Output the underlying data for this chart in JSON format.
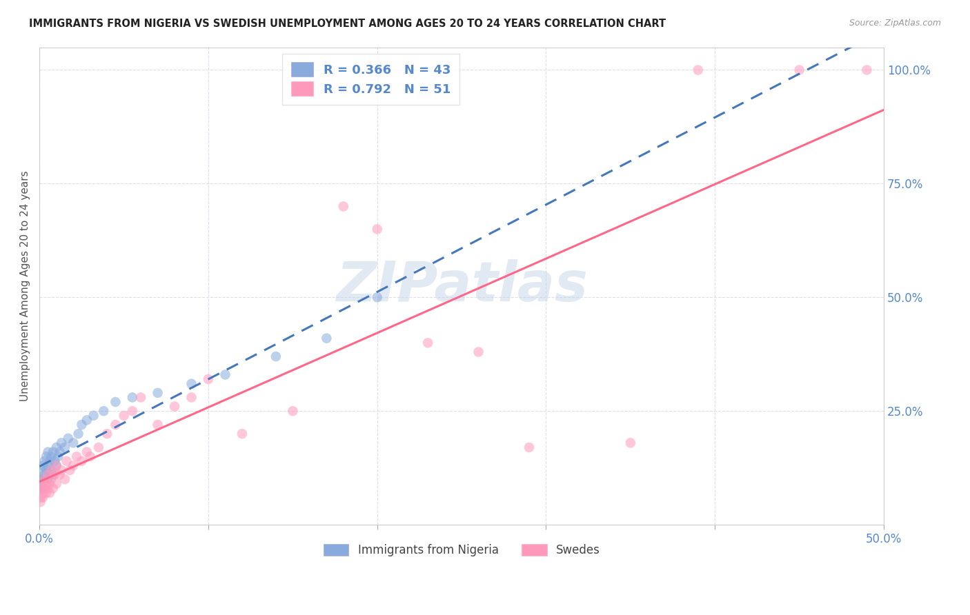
{
  "title": "IMMIGRANTS FROM NIGERIA VS SWEDISH UNEMPLOYMENT AMONG AGES 20 TO 24 YEARS CORRELATION CHART",
  "source": "Source: ZipAtlas.com",
  "ylabel": "Unemployment Among Ages 20 to 24 years",
  "legend_label1": "Immigrants from Nigeria",
  "legend_label2": "Swedes",
  "legend_text1": "R = 0.366   N = 43",
  "legend_text2": "R = 0.792   N = 51",
  "blue_color": "#88AADD",
  "pink_color": "#FF99BB",
  "blue_line_color": "#4477BB",
  "pink_line_color": "#FF6688",
  "title_color": "#222222",
  "axis_label_color": "#5588CC",
  "watermark_color": "#C5D5E8",
  "xlim": [
    0,
    0.5
  ],
  "ylim": [
    0,
    1.05
  ],
  "blue_x": [
    0.0005,
    0.001,
    0.001,
    0.0015,
    0.002,
    0.002,
    0.002,
    0.003,
    0.003,
    0.003,
    0.004,
    0.004,
    0.005,
    0.005,
    0.005,
    0.006,
    0.006,
    0.007,
    0.007,
    0.008,
    0.008,
    0.009,
    0.01,
    0.01,
    0.011,
    0.012,
    0.013,
    0.015,
    0.017,
    0.02,
    0.023,
    0.025,
    0.028,
    0.032,
    0.038,
    0.045,
    0.055,
    0.07,
    0.09,
    0.11,
    0.14,
    0.17,
    0.2
  ],
  "blue_y": [
    0.08,
    0.09,
    0.12,
    0.1,
    0.1,
    0.13,
    0.08,
    0.11,
    0.14,
    0.1,
    0.12,
    0.15,
    0.1,
    0.13,
    0.16,
    0.11,
    0.14,
    0.12,
    0.15,
    0.11,
    0.16,
    0.14,
    0.13,
    0.17,
    0.15,
    0.16,
    0.18,
    0.17,
    0.19,
    0.18,
    0.2,
    0.22,
    0.23,
    0.24,
    0.25,
    0.27,
    0.28,
    0.29,
    0.31,
    0.33,
    0.37,
    0.41,
    0.5
  ],
  "pink_x": [
    0.0005,
    0.001,
    0.001,
    0.002,
    0.002,
    0.002,
    0.003,
    0.003,
    0.004,
    0.004,
    0.005,
    0.005,
    0.006,
    0.006,
    0.007,
    0.007,
    0.008,
    0.009,
    0.01,
    0.01,
    0.012,
    0.013,
    0.015,
    0.016,
    0.018,
    0.02,
    0.022,
    0.025,
    0.028,
    0.03,
    0.035,
    0.04,
    0.045,
    0.05,
    0.055,
    0.06,
    0.07,
    0.08,
    0.09,
    0.1,
    0.12,
    0.15,
    0.18,
    0.2,
    0.23,
    0.26,
    0.29,
    0.35,
    0.39,
    0.45,
    0.49
  ],
  "pink_y": [
    0.05,
    0.06,
    0.08,
    0.07,
    0.09,
    0.06,
    0.08,
    0.1,
    0.07,
    0.09,
    0.08,
    0.11,
    0.09,
    0.07,
    0.1,
    0.12,
    0.08,
    0.11,
    0.09,
    0.13,
    0.11,
    0.12,
    0.1,
    0.14,
    0.12,
    0.13,
    0.15,
    0.14,
    0.16,
    0.15,
    0.17,
    0.2,
    0.22,
    0.24,
    0.25,
    0.28,
    0.22,
    0.26,
    0.28,
    0.32,
    0.2,
    0.25,
    0.7,
    0.65,
    0.4,
    0.38,
    0.17,
    0.18,
    1.0,
    1.0,
    1.0
  ]
}
